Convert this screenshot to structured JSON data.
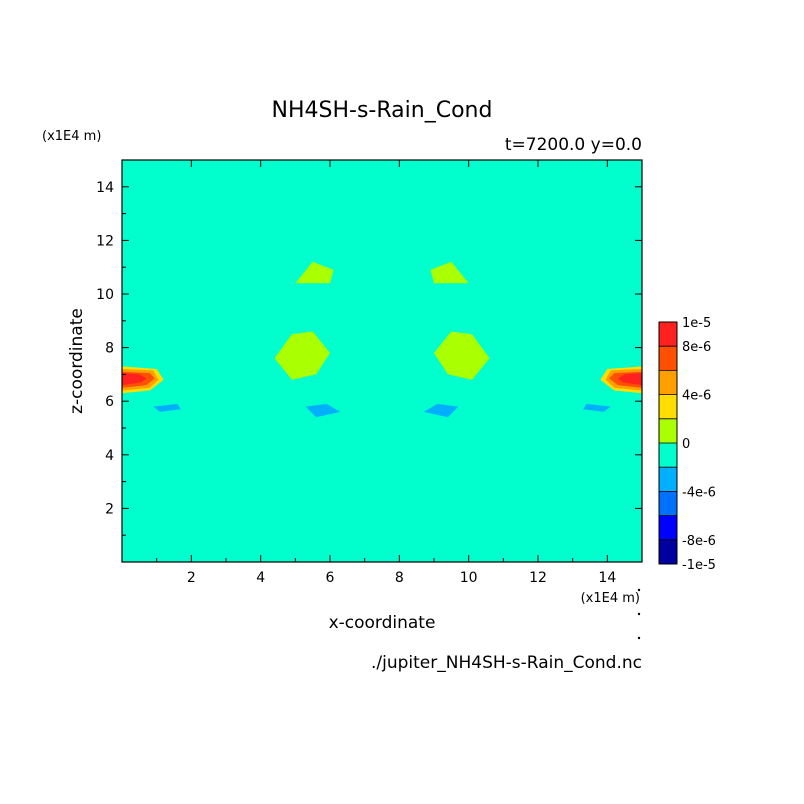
{
  "chart_data": {
    "type": "heatmap",
    "title": "NH4SH-s-Rain_Cond",
    "subtitle": "t=7200.0 y=0.0",
    "xlabel": "x-coordinate",
    "ylabel": "z-coordinate",
    "x_unit": "(x1E4 m)",
    "y_unit": "(x1E4 m)",
    "filename": "./jupiter_NH4SH-s-Rain_Cond.nc",
    "xlim": [
      0,
      15
    ],
    "ylim": [
      0,
      15
    ],
    "x_ticks": [
      "2",
      "4",
      "6",
      "8",
      "10",
      "12",
      "14"
    ],
    "y_ticks": [
      "2",
      "4",
      "6",
      "8",
      "10",
      "12",
      "14"
    ],
    "colorbar": {
      "levels": [
        -1e-05,
        -8e-06,
        -6e-06,
        -4e-06,
        -2e-06,
        0,
        2e-06,
        4e-06,
        6e-06,
        8e-06,
        1e-05
      ],
      "labels": [
        "1e-5",
        "8e-6",
        "4e-6",
        "0",
        "-4e-6",
        "-8e-6",
        "-1e-5"
      ],
      "label_values": [
        1e-05,
        8e-06,
        4e-06,
        0,
        -4e-06,
        -8e-06,
        -1e-05
      ],
      "colors": [
        "#0000a0",
        "#0000ff",
        "#0070ff",
        "#00b0ff",
        "#00ffcc",
        "#aaff00",
        "#ffdd00",
        "#ffa000",
        "#ff5000",
        "#ff2020"
      ]
    },
    "background_value": 0,
    "regions": [
      {
        "value": -1e-06,
        "desc": "upper band",
        "points": [
          [
            0,
            15
          ],
          [
            15,
            15
          ],
          [
            15,
            13.3
          ],
          [
            13.8,
            12.6
          ],
          [
            11.2,
            13.3
          ],
          [
            9.2,
            13.1
          ],
          [
            7.5,
            12.4
          ],
          [
            5.8,
            13.1
          ],
          [
            3.8,
            13.3
          ],
          [
            1.2,
            12.6
          ],
          [
            0,
            13.3
          ]
        ]
      },
      {
        "value": -1e-06,
        "desc": "left central",
        "points": [
          [
            2.5,
            6.4
          ],
          [
            2.4,
            7.2
          ],
          [
            2.6,
            8.3
          ],
          [
            3.3,
            9.2
          ],
          [
            4.6,
            10.1
          ],
          [
            5.5,
            11.8
          ],
          [
            6.6,
            11.1
          ],
          [
            7.1,
            9.7
          ],
          [
            7.5,
            8.3
          ],
          [
            7.5,
            7.1
          ],
          [
            7.3,
            6.5
          ],
          [
            6.3,
            6.3
          ],
          [
            5.5,
            6.0
          ],
          [
            4.5,
            6.1
          ],
          [
            3.5,
            6.0
          ]
        ]
      },
      {
        "value": -1e-06,
        "desc": "right central",
        "points": [
          [
            12.5,
            6.4
          ],
          [
            12.6,
            7.2
          ],
          [
            12.4,
            8.3
          ],
          [
            11.7,
            9.2
          ],
          [
            10.4,
            10.1
          ],
          [
            9.5,
            11.8
          ],
          [
            8.4,
            11.1
          ],
          [
            7.9,
            9.7
          ],
          [
            7.5,
            8.3
          ],
          [
            7.5,
            7.1
          ],
          [
            7.7,
            6.5
          ],
          [
            8.7,
            6.3
          ],
          [
            9.5,
            6.0
          ],
          [
            10.5,
            6.1
          ],
          [
            11.5,
            6.0
          ]
        ]
      },
      {
        "value": -1e-06,
        "desc": "lower band",
        "points": [
          [
            0,
            5.6
          ],
          [
            15,
            5.6
          ],
          [
            15,
            6.5
          ],
          [
            12.6,
            6.9
          ],
          [
            11.0,
            6.6
          ],
          [
            9.5,
            5.8
          ],
          [
            8.2,
            5.7
          ],
          [
            7.5,
            5.9
          ],
          [
            6.8,
            5.7
          ],
          [
            5.5,
            5.8
          ],
          [
            4.0,
            6.6
          ],
          [
            2.4,
            6.9
          ],
          [
            0,
            6.5
          ]
        ]
      },
      {
        "value": -1e-06,
        "desc": "left edge",
        "points": [
          [
            0,
            7.0
          ],
          [
            0.8,
            7.6
          ],
          [
            1.3,
            8.6
          ],
          [
            1.1,
            9.8
          ],
          [
            0.4,
            10.3
          ],
          [
            0,
            10.1
          ]
        ]
      },
      {
        "value": -1e-06,
        "desc": "right edge",
        "points": [
          [
            15,
            7.0
          ],
          [
            14.2,
            7.6
          ],
          [
            13.7,
            8.6
          ],
          [
            13.9,
            9.8
          ],
          [
            14.6,
            10.3
          ],
          [
            15,
            10.1
          ]
        ]
      },
      {
        "value": 1e-06,
        "desc": "left hole",
        "points": [
          [
            4.4,
            7.6
          ],
          [
            4.9,
            8.5
          ],
          [
            5.5,
            8.6
          ],
          [
            6.0,
            7.8
          ],
          [
            5.6,
            7.0
          ],
          [
            4.9,
            6.8
          ]
        ]
      },
      {
        "value": 1e-06,
        "desc": "right hole",
        "points": [
          [
            10.6,
            7.6
          ],
          [
            10.1,
            8.5
          ],
          [
            9.5,
            8.6
          ],
          [
            9.0,
            7.8
          ],
          [
            9.4,
            7.0
          ],
          [
            10.1,
            6.8
          ]
        ]
      },
      {
        "value": 1e-06,
        "desc": "upper left hole",
        "points": [
          [
            5.0,
            10.4
          ],
          [
            5.5,
            11.2
          ],
          [
            6.1,
            10.9
          ],
          [
            6.0,
            10.4
          ]
        ]
      },
      {
        "value": 1e-06,
        "desc": "upper right hole",
        "points": [
          [
            10.0,
            10.4
          ],
          [
            9.5,
            11.2
          ],
          [
            8.9,
            10.9
          ],
          [
            9.0,
            10.4
          ]
        ]
      },
      {
        "value": 3e-06,
        "desc": "left max outer",
        "points": [
          [
            0,
            6.3
          ],
          [
            0.8,
            6.4
          ],
          [
            1.2,
            6.8
          ],
          [
            1.0,
            7.2
          ],
          [
            0,
            7.3
          ]
        ]
      },
      {
        "value": 5e-06,
        "desc": "left max mid",
        "points": [
          [
            0,
            6.4
          ],
          [
            0.8,
            6.5
          ],
          [
            1.05,
            6.8
          ],
          [
            0.9,
            7.15
          ],
          [
            0,
            7.2
          ]
        ]
      },
      {
        "value": 7e-06,
        "desc": "left max inner",
        "points": [
          [
            0,
            6.5
          ],
          [
            0.7,
            6.6
          ],
          [
            0.95,
            6.85
          ],
          [
            0.8,
            7.05
          ],
          [
            0,
            7.1
          ]
        ]
      },
      {
        "value": 9e-06,
        "desc": "left max core",
        "points": [
          [
            0,
            6.6
          ],
          [
            0.55,
            6.7
          ],
          [
            0.7,
            6.85
          ],
          [
            0.5,
            7.0
          ],
          [
            0,
            7.05
          ]
        ]
      },
      {
        "value": 3e-06,
        "desc": "right max outer",
        "points": [
          [
            15,
            6.3
          ],
          [
            14.2,
            6.4
          ],
          [
            13.8,
            6.8
          ],
          [
            14.0,
            7.2
          ],
          [
            15,
            7.3
          ]
        ]
      },
      {
        "value": 5e-06,
        "desc": "right max mid",
        "points": [
          [
            15,
            6.4
          ],
          [
            14.2,
            6.5
          ],
          [
            13.95,
            6.8
          ],
          [
            14.1,
            7.15
          ],
          [
            15,
            7.2
          ]
        ]
      },
      {
        "value": 7e-06,
        "desc": "right max inner",
        "points": [
          [
            15,
            6.5
          ],
          [
            14.3,
            6.6
          ],
          [
            14.05,
            6.85
          ],
          [
            14.2,
            7.05
          ],
          [
            15,
            7.1
          ]
        ]
      },
      {
        "value": 9e-06,
        "desc": "right max core",
        "points": [
          [
            15,
            6.6
          ],
          [
            14.45,
            6.7
          ],
          [
            14.3,
            6.85
          ],
          [
            14.5,
            7.0
          ],
          [
            15,
            7.05
          ]
        ]
      },
      {
        "value": -3e-06,
        "desc": "min 1",
        "points": [
          [
            0.9,
            5.8
          ],
          [
            1.6,
            5.9
          ],
          [
            1.7,
            5.7
          ],
          [
            1.1,
            5.6
          ]
        ]
      },
      {
        "value": -3e-06,
        "desc": "min 2",
        "points": [
          [
            5.3,
            5.8
          ],
          [
            5.9,
            5.9
          ],
          [
            6.3,
            5.6
          ],
          [
            5.6,
            5.4
          ]
        ]
      },
      {
        "value": -3e-06,
        "desc": "min 3",
        "points": [
          [
            9.7,
            5.8
          ],
          [
            9.1,
            5.9
          ],
          [
            8.7,
            5.6
          ],
          [
            9.4,
            5.4
          ]
        ]
      },
      {
        "value": -3e-06,
        "desc": "min 4",
        "points": [
          [
            14.1,
            5.8
          ],
          [
            13.4,
            5.9
          ],
          [
            13.3,
            5.7
          ],
          [
            13.9,
            5.6
          ]
        ]
      }
    ]
  }
}
